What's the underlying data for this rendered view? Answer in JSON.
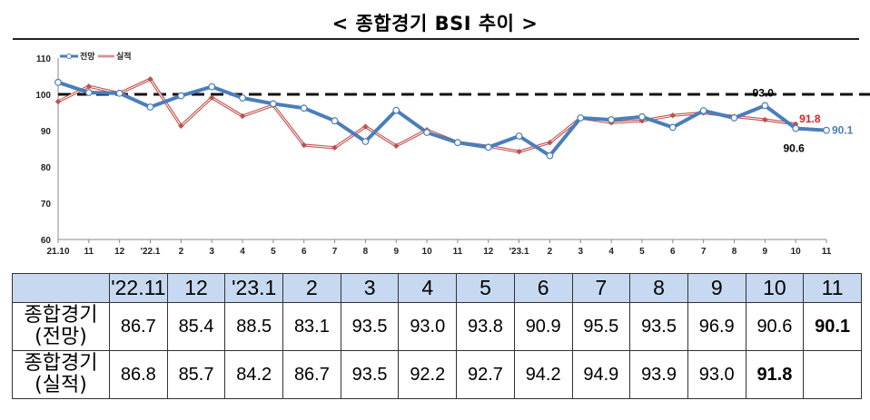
{
  "title": "< 종합경기 BSI 추이 >",
  "chart_data": {
    "type": "line",
    "x": [
      "21.10",
      "11",
      "12",
      "'22.1",
      "2",
      "3",
      "4",
      "5",
      "6",
      "7",
      "8",
      "9",
      "10",
      "11",
      "12",
      "'23.1",
      "2",
      "3",
      "4",
      "5",
      "6",
      "7",
      "8",
      "9",
      "10",
      "11"
    ],
    "ylim": [
      60,
      110
    ],
    "yticks": [
      60,
      70,
      80,
      90,
      100,
      110
    ],
    "reference_line": 100,
    "legend_position": "top-left",
    "series": [
      {
        "name": "전망",
        "color": "#4a7ebb",
        "values": [
          103.3,
          100.5,
          100.3,
          96.5,
          99.6,
          102.1,
          99.0,
          97.4,
          96.2,
          92.7,
          87.0,
          95.6,
          89.5,
          86.7,
          85.4,
          88.5,
          83.1,
          93.5,
          93.0,
          93.8,
          90.9,
          95.5,
          93.5,
          96.9,
          90.6,
          90.1
        ]
      },
      {
        "name": "실적",
        "color": "#c0504d",
        "values": [
          98.0,
          102.2,
          100.3,
          104.2,
          91.3,
          99.1,
          94.0,
          97.0,
          86.0,
          85.3,
          91.1,
          85.8,
          90.2,
          86.8,
          85.7,
          84.2,
          86.7,
          93.5,
          92.2,
          92.7,
          94.2,
          94.9,
          93.9,
          93.0,
          91.8,
          null
        ]
      }
    ],
    "annotations": [
      {
        "text": "93.0",
        "color": "#000000"
      },
      {
        "text": "91.8",
        "color": "#e02020"
      },
      {
        "text": "90.6",
        "color": "#000000"
      },
      {
        "text": "90.1",
        "color": "#4a7ebb"
      }
    ]
  },
  "table": {
    "headers": [
      "'22.11",
      "12",
      "'23.1",
      "2",
      "3",
      "4",
      "5",
      "6",
      "7",
      "8",
      "9",
      "10",
      "11"
    ],
    "rows": [
      {
        "label_line1": "종합경기",
        "label_line2": "(전망)",
        "values": [
          "86.7",
          "85.4",
          "88.5",
          "83.1",
          "93.5",
          "93.0",
          "93.8",
          "90.9",
          "95.5",
          "93.5",
          "96.9",
          "90.6",
          "90.1"
        ]
      },
      {
        "label_line1": "종합경기",
        "label_line2": "(실적)",
        "values": [
          "86.8",
          "85.7",
          "84.2",
          "86.7",
          "93.5",
          "92.2",
          "92.7",
          "94.2",
          "94.9",
          "93.9",
          "93.0",
          "91.8",
          ""
        ]
      }
    ],
    "bold_cells": [
      [
        0,
        12
      ],
      [
        1,
        11
      ]
    ]
  }
}
